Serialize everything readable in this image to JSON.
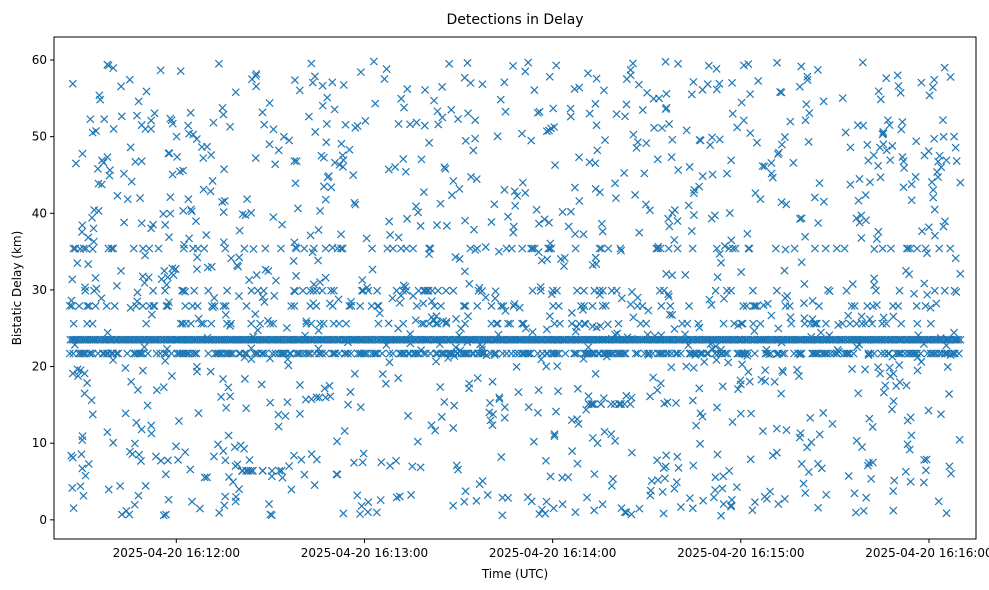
{
  "chart_data": {
    "type": "scatter",
    "title": "Detections in Delay",
    "xlabel": "Time (UTC)",
    "ylabel": "Bistatic Delay (km)",
    "marker": "x",
    "color": "#1f77b4",
    "grid": false,
    "legend": "none",
    "x_axis": {
      "kind": "time",
      "range": [
        "2025-04-20 16:11:21",
        "2025-04-20 16:16:15"
      ],
      "ticks": [
        "2025-04-20 16:12:00",
        "2025-04-20 16:13:00",
        "2025-04-20 16:14:00",
        "2025-04-20 16:15:00",
        "2025-04-20 16:16:00"
      ]
    },
    "y_axis": {
      "range": [
        -2.5,
        63
      ],
      "ticks": [
        0,
        10,
        20,
        30,
        40,
        50,
        60
      ]
    },
    "series": [
      {
        "time_range": [
          "2025-04-20 16:11:26",
          "2025-04-20 16:16:10"
        ],
        "dense_bands": [
          {
            "delay_km": 23.5,
            "description": "continuous"
          },
          {
            "delay_km": 21.7,
            "description": "frequent"
          },
          {
            "delay_km": 25.6,
            "description": "intermittent"
          },
          {
            "delay_km": 35.4,
            "description": "intermittent"
          },
          {
            "delay_km": 29.9,
            "description": "intermittent"
          },
          {
            "delay_km": 27.9,
            "description": "intermittent"
          },
          {
            "delay_km": 15.1,
            "description": "cluster near 16:14:18"
          },
          {
            "delay_km": 6.4,
            "description": "cluster near 16:12:27"
          }
        ],
        "sample_points": [
          [
            "2025-04-20 16:11:27",
            56.9
          ],
          [
            "2025-04-20 16:11:28",
            46.5
          ],
          [
            "2025-04-20 16:11:27",
            19.1
          ],
          [
            "2025-04-20 16:11:27",
            8.1
          ],
          [
            "2025-04-20 16:11:30",
            10.4
          ],
          [
            "2025-04-20 16:11:33",
            15.6
          ],
          [
            "2025-04-20 16:11:35",
            45.8
          ],
          [
            "2025-04-20 16:11:38",
            59.4
          ],
          [
            "2025-04-20 16:11:40",
            51.0
          ],
          [
            "2025-04-20 16:11:45",
            0.7
          ],
          [
            "2025-04-20 16:11:52",
            12.3
          ],
          [
            "2025-04-20 16:12:20",
            4.0
          ],
          [
            "2025-04-20 16:12:30",
            0.7
          ],
          [
            "2025-04-20 16:13:03",
            59.8
          ],
          [
            "2025-04-20 16:13:27",
            59.5
          ],
          [
            "2025-04-20 16:13:44",
            2.9
          ],
          [
            "2025-04-20 16:14:23",
            1.0
          ],
          [
            "2025-04-20 16:14:40",
            59.5
          ],
          [
            "2025-04-20 16:14:48",
            2.5
          ],
          [
            "2025-04-20 16:15:01",
            59.3
          ],
          [
            "2025-04-20 16:15:50",
            58.0
          ],
          [
            "2025-04-20 16:16:05",
            59.0
          ],
          [
            "2025-04-20 16:16:08",
            50.0
          ],
          [
            "2025-04-20 16:16:10",
            44.0
          ],
          [
            "2025-04-20 16:16:10",
            32.1
          ]
        ]
      }
    ]
  }
}
